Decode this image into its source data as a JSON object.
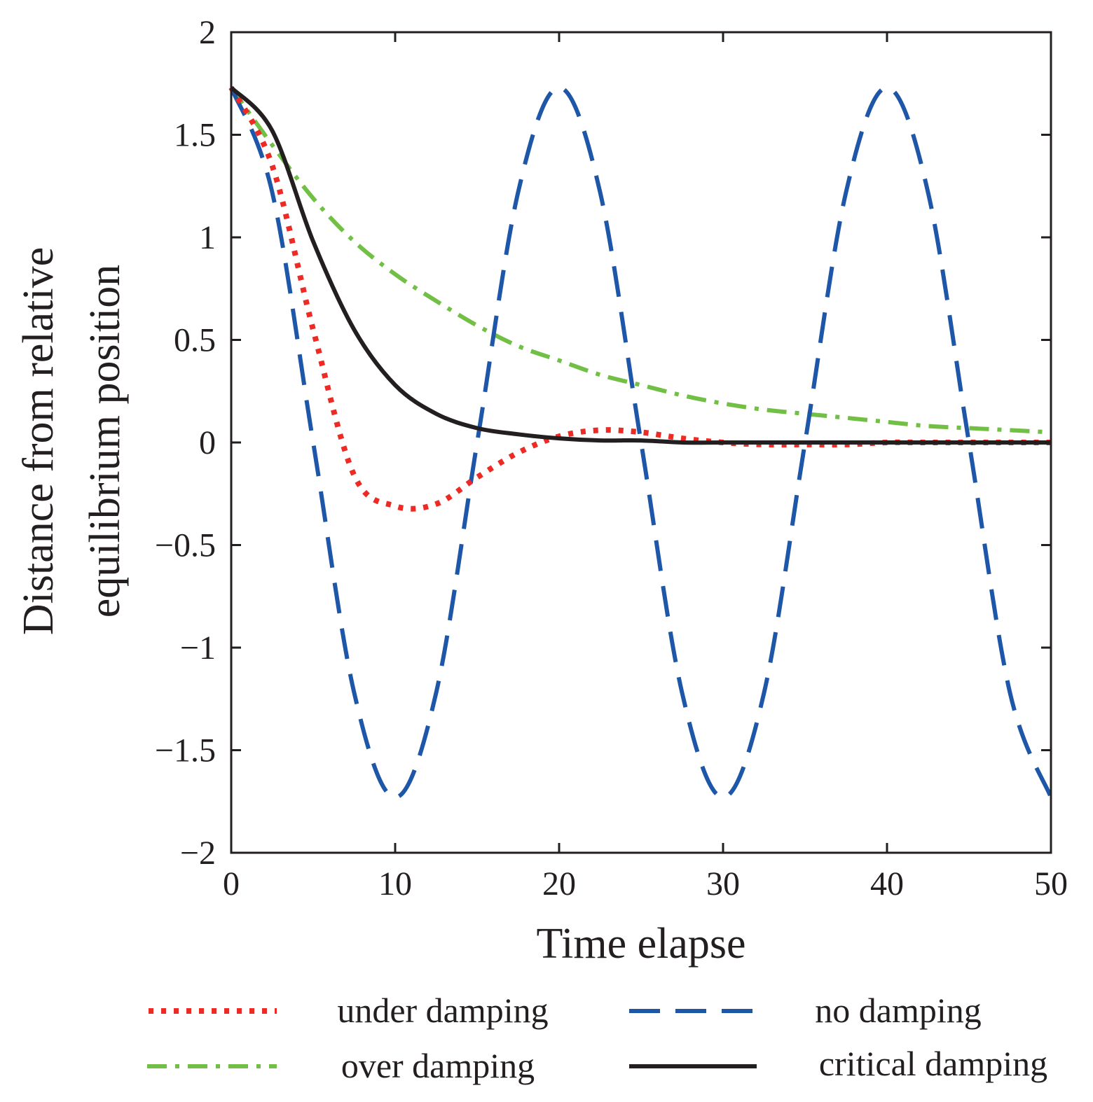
{
  "chart_data": {
    "type": "line",
    "title": "",
    "xlabel": "Time elapse",
    "ylabel_lines": [
      "Distance from relative",
      "equilibrium position"
    ],
    "xlim": [
      0,
      50
    ],
    "ylim": [
      -2,
      2
    ],
    "xticks": [
      0,
      10,
      20,
      30,
      40,
      50
    ],
    "xtick_labels": [
      "0",
      "10",
      "20",
      "30",
      "40",
      "50"
    ],
    "yticks": [
      2,
      1.5,
      1,
      0.5,
      0,
      -0.5,
      -1,
      -1.5,
      -2
    ],
    "ytick_labels": [
      "2",
      "1.5",
      "1",
      "0.5",
      "0",
      "−0.5",
      "−1",
      "−1.5",
      "−2"
    ],
    "grid": false,
    "legend_position": "bottom",
    "x": [
      0,
      2.5,
      5,
      7.5,
      10,
      12.5,
      15,
      17.5,
      20,
      22.5,
      25,
      27.5,
      30,
      32.5,
      35,
      37.5,
      40,
      42.5,
      45,
      47.5,
      50
    ],
    "series": [
      {
        "name": "under damping",
        "style": "dotted",
        "color": "#ee2a24",
        "values": [
          1.73,
          1.35,
          0.55,
          -0.16,
          -0.31,
          -0.3,
          -0.17,
          -0.05,
          0.03,
          0.06,
          0.05,
          0.02,
          0.0,
          -0.01,
          -0.01,
          -0.01,
          0.0,
          0.0,
          0.0,
          0.0,
          0.0
        ]
      },
      {
        "name": "no damping",
        "style": "dashed",
        "color": "#1f57a8",
        "values": [
          1.73,
          1.22,
          0.0,
          -1.22,
          -1.73,
          -1.22,
          0.0,
          1.22,
          1.73,
          1.22,
          0.0,
          -1.22,
          -1.73,
          -1.22,
          0.0,
          1.22,
          1.73,
          1.22,
          0.0,
          -1.22,
          -1.73
        ]
      },
      {
        "name": "over damping",
        "style": "dashdot",
        "color": "#71bf44",
        "values": [
          1.73,
          1.45,
          1.19,
          0.98,
          0.82,
          0.69,
          0.57,
          0.47,
          0.4,
          0.33,
          0.28,
          0.23,
          0.19,
          0.16,
          0.14,
          0.12,
          0.1,
          0.08,
          0.07,
          0.06,
          0.05
        ]
      },
      {
        "name": "critical damping",
        "style": "solid",
        "color": "#231f20",
        "values": [
          1.73,
          1.52,
          0.98,
          0.55,
          0.28,
          0.14,
          0.07,
          0.04,
          0.02,
          0.01,
          0.01,
          0.0,
          0.0,
          0.0,
          0.0,
          0.0,
          0.0,
          0.0,
          0.0,
          0.0,
          0.0
        ]
      }
    ]
  }
}
